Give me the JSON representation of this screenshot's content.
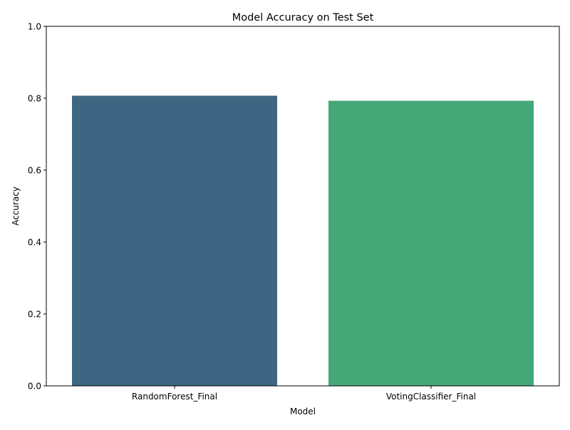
{
  "chart_data": {
    "type": "bar",
    "title": "Model Accuracy on Test Set",
    "xlabel": "Model",
    "ylabel": "Accuracy",
    "categories": [
      "RandomForest_Final",
      "VotingClassifier_Final"
    ],
    "values": [
      0.807,
      0.793
    ],
    "colors": [
      "#3e6683",
      "#45a778"
    ],
    "ylim": [
      0,
      1
    ],
    "yticks": [
      0.0,
      0.2,
      0.4,
      0.6,
      0.8,
      1.0
    ],
    "ytick_labels": [
      "0.0",
      "0.2",
      "0.4",
      "0.6",
      "0.8",
      "1.0"
    ],
    "grid": false,
    "legend": false
  }
}
